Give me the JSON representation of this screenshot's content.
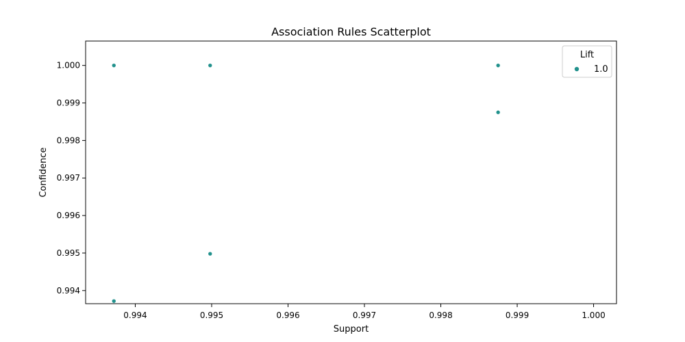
{
  "chart_data": {
    "type": "scatter",
    "title": "Association Rules Scatterplot",
    "xlabel": "Support",
    "ylabel": "Confidence",
    "xlim": [
      0.99335,
      1.0003
    ],
    "ylim": [
      0.99365,
      1.00065
    ],
    "x_ticks": [
      0.994,
      0.995,
      0.996,
      0.997,
      0.998,
      0.999,
      1.0
    ],
    "x_tick_labels": [
      "0.994",
      "0.995",
      "0.996",
      "0.997",
      "0.998",
      "0.999",
      "1.000"
    ],
    "y_ticks": [
      0.994,
      0.995,
      0.996,
      0.997,
      0.998,
      0.999,
      1.0
    ],
    "y_tick_labels": [
      "0.994",
      "0.995",
      "0.996",
      "0.997",
      "0.998",
      "0.999",
      "1.000"
    ],
    "grid": false,
    "legend": {
      "title": "Lift",
      "placement": "top-right",
      "entries": [
        {
          "label": "1.0",
          "color": "#21918c"
        }
      ]
    },
    "series": [
      {
        "name": "1.0",
        "color": "#21918c",
        "points": [
          {
            "x": 0.99372,
            "y": 1.0
          },
          {
            "x": 0.99372,
            "y": 0.99372
          },
          {
            "x": 0.99498,
            "y": 1.0
          },
          {
            "x": 0.99498,
            "y": 0.99498
          },
          {
            "x": 0.99875,
            "y": 1.0
          },
          {
            "x": 0.99875,
            "y": 0.99875
          }
        ]
      }
    ]
  }
}
